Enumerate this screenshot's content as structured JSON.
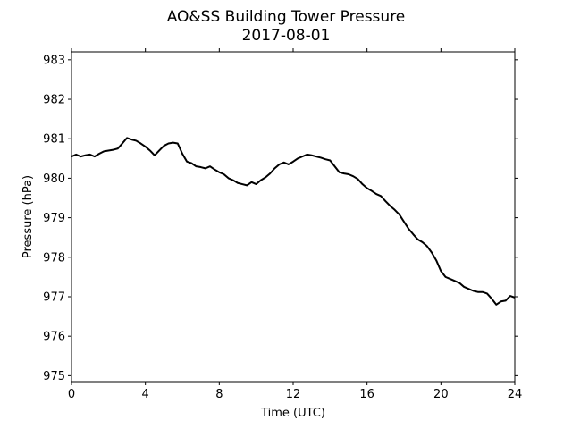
{
  "chart_data": {
    "type": "line",
    "title": "AO&SS Building Tower Pressure",
    "subtitle": "2017-08-01",
    "xlabel": "Time (UTC)",
    "ylabel": "Pressure (hPa)",
    "xlim": [
      0,
      24
    ],
    "ylim": [
      974.85,
      983.2
    ],
    "xticks": [
      0,
      4,
      8,
      12,
      16,
      20,
      24
    ],
    "yticks": [
      975,
      976,
      977,
      978,
      979,
      980,
      981,
      982,
      983
    ],
    "grid": false,
    "line_color": "#000000",
    "series": [
      {
        "x": [
          0,
          0.25,
          0.5,
          0.75,
          1.0,
          1.25,
          1.5,
          1.75,
          2.0,
          2.25,
          2.5,
          2.75,
          3.0,
          3.25,
          3.5,
          3.75,
          4.0,
          4.25,
          4.5,
          4.75,
          5.0,
          5.25,
          5.5,
          5.75,
          6.0,
          6.25,
          6.5,
          6.75,
          7.0,
          7.25,
          7.5,
          7.75,
          8.0,
          8.25,
          8.5,
          8.75,
          9.0,
          9.25,
          9.5,
          9.75,
          10.0,
          10.25,
          10.5,
          10.75,
          11.0,
          11.25,
          11.5,
          11.75,
          12.0,
          12.25,
          12.5,
          12.75,
          13.0,
          13.25,
          13.5,
          13.75,
          14.0,
          14.25,
          14.5,
          14.75,
          15.0,
          15.25,
          15.5,
          15.75,
          16.0,
          16.25,
          16.5,
          16.75,
          17.0,
          17.25,
          17.5,
          17.75,
          18.0,
          18.25,
          18.5,
          18.75,
          19.0,
          19.25,
          19.5,
          19.75,
          20.0,
          20.25,
          20.5,
          20.75,
          21.0,
          21.25,
          21.5,
          21.75,
          22.0,
          22.25,
          22.5,
          22.75,
          23.0,
          23.25,
          23.5,
          23.75,
          24.0
        ],
        "values": [
          980.55,
          980.6,
          980.55,
          980.58,
          980.6,
          980.55,
          980.62,
          980.68,
          980.7,
          980.72,
          980.75,
          980.88,
          981.02,
          980.98,
          980.95,
          980.88,
          980.8,
          980.7,
          980.58,
          980.7,
          980.82,
          980.88,
          980.9,
          980.88,
          980.62,
          980.42,
          980.38,
          980.3,
          980.28,
          980.25,
          980.3,
          980.22,
          980.15,
          980.1,
          980.0,
          979.95,
          979.88,
          979.85,
          979.82,
          979.9,
          979.85,
          979.95,
          980.02,
          980.12,
          980.25,
          980.35,
          980.4,
          980.35,
          980.42,
          980.5,
          980.55,
          980.6,
          980.58,
          980.55,
          980.52,
          980.48,
          980.45,
          980.3,
          980.15,
          980.12,
          980.1,
          980.05,
          979.98,
          979.85,
          979.75,
          979.68,
          979.6,
          979.55,
          979.42,
          979.3,
          979.2,
          979.08,
          978.9,
          978.72,
          978.58,
          978.45,
          978.38,
          978.28,
          978.12,
          977.92,
          977.65,
          977.5,
          977.45,
          977.4,
          977.35,
          977.25,
          977.2,
          977.15,
          977.12,
          977.12,
          977.08,
          976.95,
          976.8,
          976.88,
          976.9,
          977.02,
          976.98
        ]
      }
    ]
  }
}
